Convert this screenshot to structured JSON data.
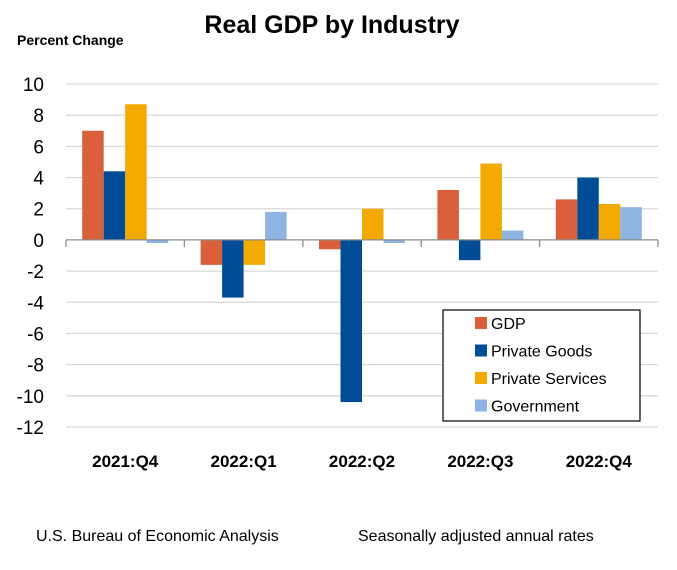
{
  "chart_data": {
    "type": "bar",
    "title": "Real GDP by Industry",
    "ylabel": "Percent Change",
    "xlabel": "",
    "categories": [
      "2021:Q4",
      "2022:Q1",
      "2022:Q2",
      "2022:Q3",
      "2022:Q4"
    ],
    "series": [
      {
        "name": "GDP",
        "color": "#D9603A",
        "values": [
          7.0,
          -1.6,
          -0.6,
          3.2,
          2.6
        ]
      },
      {
        "name": "Private Goods",
        "color": "#004C97",
        "values": [
          4.4,
          -3.7,
          -10.4,
          -1.3,
          4.0
        ]
      },
      {
        "name": "Private Services",
        "color": "#F2A900",
        "values": [
          8.7,
          -1.6,
          2.0,
          4.9,
          2.3
        ]
      },
      {
        "name": "Government",
        "color": "#8EB4E3",
        "values": [
          -0.2,
          1.8,
          -0.2,
          0.6,
          2.1
        ]
      }
    ],
    "ylim": [
      -12,
      10
    ],
    "yticks": [
      10,
      8,
      6,
      4,
      2,
      0,
      -2,
      -4,
      -6,
      -8,
      -10,
      -12
    ],
    "grid": true,
    "legend_position": "lower-right"
  },
  "footer": {
    "source": "U.S. Bureau of Economic Analysis",
    "note": "Seasonally adjusted annual rates"
  }
}
